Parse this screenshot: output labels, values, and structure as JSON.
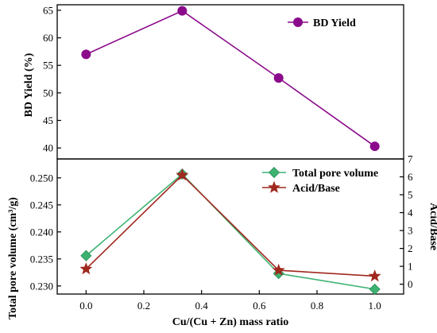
{
  "chart_data": [
    {
      "type": "line",
      "x": [
        0.0,
        0.333,
        0.667,
        1.0
      ],
      "ylabel": "BD Yield (%)",
      "ylim": [
        38,
        66
      ],
      "yticks": [
        "40",
        "45",
        "50",
        "55",
        "60",
        "65"
      ],
      "series": [
        {
          "name": "BD Yield",
          "values": [
            57.0,
            64.9,
            52.7,
            40.3
          ],
          "color": "#8B0A8B",
          "marker": "circle"
        }
      ],
      "legend": "top-right",
      "grid": false
    },
    {
      "type": "line",
      "x": [
        0.0,
        0.333,
        0.667,
        1.0
      ],
      "xlabel": "Cu/(Cu + Zn) mass ratio",
      "xlim": [
        -0.1,
        1.1
      ],
      "xticks": [
        "0.0",
        "0.2",
        "0.4",
        "0.6",
        "0.8",
        "1.0"
      ],
      "ylabel_left": "Total pore volume (cm³/g)",
      "ylim_left": [
        0.2285,
        0.2535
      ],
      "yticks_left": [
        "0.230",
        "0.235",
        "0.240",
        "0.245",
        "0.250"
      ],
      "ylabel_right": "Acid/Base",
      "ylim_right": [
        -0.55,
        7.0
      ],
      "yticks_right": [
        "0",
        "1",
        "2",
        "3",
        "4",
        "5",
        "6",
        "7"
      ],
      "series": [
        {
          "name": "Total pore volume",
          "axis": "left",
          "values": [
            0.2356,
            0.2507,
            0.2323,
            0.2294
          ],
          "color": "#3CB371",
          "marker": "diamond"
        },
        {
          "name": "Acid/Base",
          "axis": "right",
          "values": [
            0.85,
            6.1,
            0.78,
            0.45
          ],
          "color": "#A0281E",
          "marker": "star"
        }
      ],
      "legend": "top-right",
      "grid": false
    }
  ]
}
